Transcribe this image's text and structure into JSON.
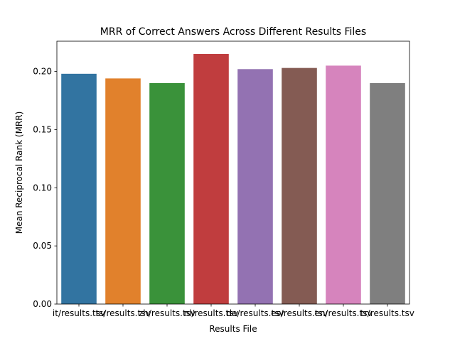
{
  "chart_data": {
    "type": "bar",
    "title": "MRR of Correct Answers Across Different Results Files",
    "xlabel": "Results File",
    "ylabel": "Mean Reciprocal Rank (MRR)",
    "categories": [
      "it/results.tsv",
      "ts/results.tsv",
      "zh/results.tsv",
      "nl/results.tsv",
      "de/results.tsv",
      "es/results.tsv",
      "en/results.tsv",
      "tr/results.tsv"
    ],
    "values": [
      0.198,
      0.194,
      0.19,
      0.215,
      0.202,
      0.203,
      0.205,
      0.19
    ],
    "ylim": [
      0,
      0.226
    ],
    "yticks": [
      0.0,
      0.05,
      0.1,
      0.15,
      0.2
    ],
    "ytick_labels": [
      "0.00",
      "0.05",
      "0.10",
      "0.15",
      "0.20"
    ],
    "colors": [
      "#3274a1",
      "#e1812c",
      "#3a923a",
      "#c03d3e",
      "#9372b2",
      "#845b53",
      "#d684bd",
      "#7f7f7f"
    ],
    "grid": false,
    "legend": "none"
  }
}
